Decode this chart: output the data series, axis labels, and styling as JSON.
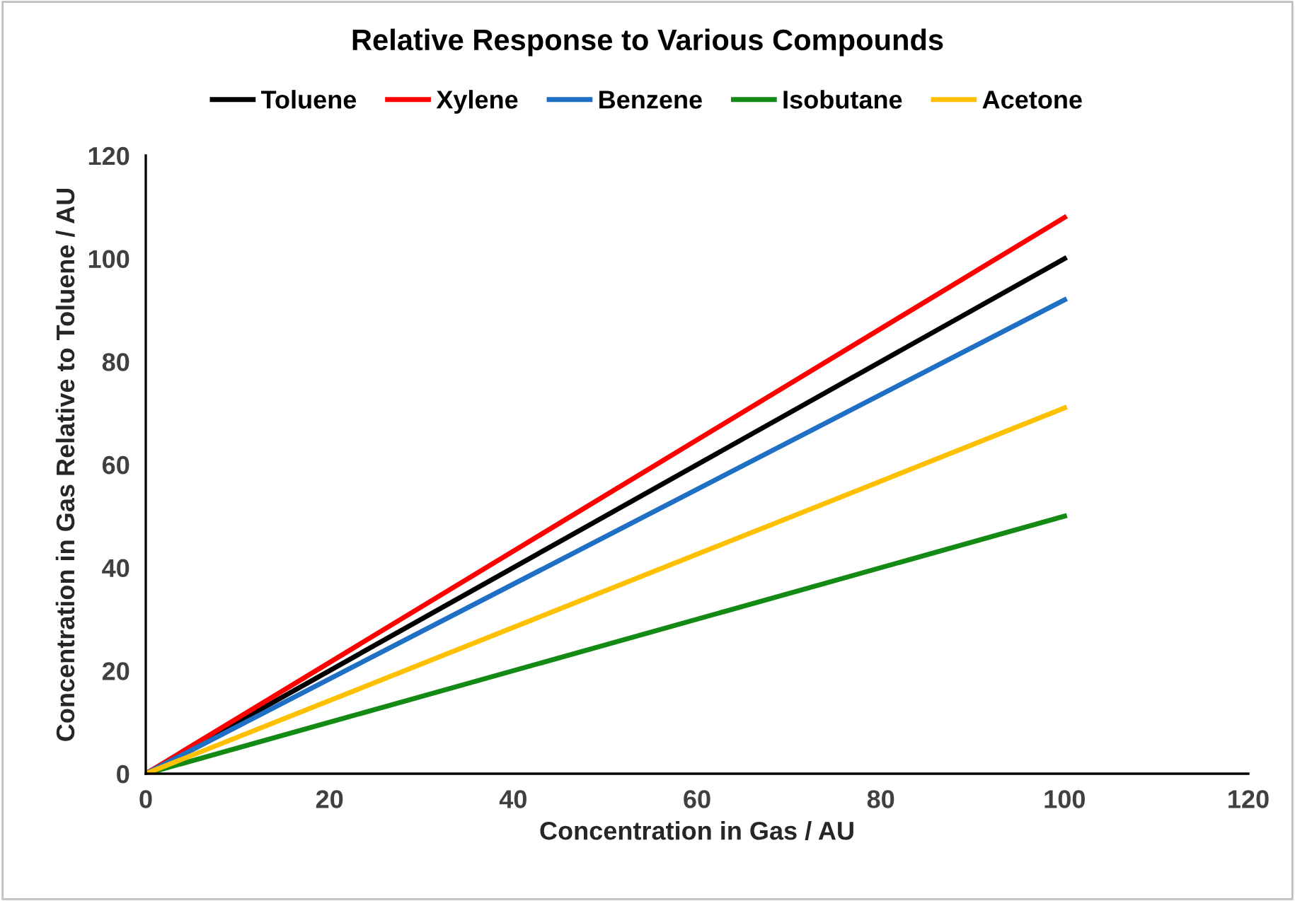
{
  "chart_data": {
    "type": "line",
    "title": "Relative Response to Various Compounds",
    "xlabel": "Concentration in Gas / AU",
    "ylabel": "Concentration in Gas Relative to Toluene / AU",
    "x": [
      0,
      100
    ],
    "series": [
      {
        "name": "Toluene",
        "color": "#000000",
        "values": [
          0,
          100
        ]
      },
      {
        "name": "Xylene",
        "color": "#ff0000",
        "values": [
          0,
          108
        ]
      },
      {
        "name": "Benzene",
        "color": "#1f6fc5",
        "values": [
          0,
          92
        ]
      },
      {
        "name": "Isobutane",
        "color": "#138a14",
        "values": [
          0,
          50
        ]
      },
      {
        "name": "Acetone",
        "color": "#ffc000",
        "values": [
          0,
          71
        ]
      }
    ],
    "xlim": [
      0,
      120
    ],
    "ylim": [
      0,
      120
    ],
    "xticks": [
      0,
      20,
      40,
      60,
      80,
      100,
      120
    ],
    "yticks": [
      0,
      20,
      40,
      60,
      80,
      100,
      120
    ],
    "grid": false,
    "legend": "top",
    "marker": "none",
    "line_style": "solid"
  }
}
